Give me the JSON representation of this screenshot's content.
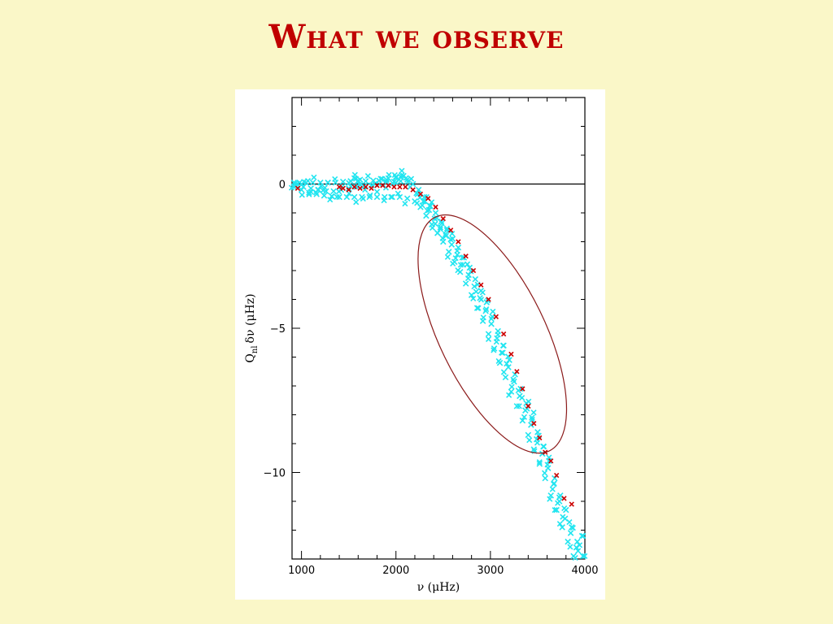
{
  "slide": {
    "title": "What we observe"
  },
  "chart_data": {
    "type": "scatter",
    "title": "",
    "xlabel": "ν (μHz)",
    "ylabel": "Q_nl δν (μHz)",
    "ylabel_main": "Q",
    "ylabel_sub": "nl",
    "ylabel_rest": "δν  (μHz)",
    "xlim": [
      900,
      4000
    ],
    "ylim": [
      -13,
      3
    ],
    "x_ticks": [
      1000,
      2000,
      3000,
      4000
    ],
    "y_ticks": [
      0,
      -5,
      -10
    ],
    "y_tick_labels": [
      "0",
      "−5",
      "−10"
    ],
    "grid": false,
    "reference_line_y": 0,
    "colors": {
      "model_points": "#22e5f0",
      "observed_points": "#cc0000",
      "ellipse": "#8b1a1a",
      "axes": "#000000"
    },
    "series": [
      {
        "marker": "cross",
        "color": "#22e5f0",
        "points": [
          [
            920,
            0.05
          ],
          [
            980,
            0.05
          ],
          [
            1050,
            0.05
          ],
          [
            1120,
            0.05
          ],
          [
            1200,
            0.05
          ],
          [
            1280,
            0.05
          ],
          [
            1360,
            0.05
          ],
          [
            1440,
            0.08
          ],
          [
            1520,
            0.1
          ],
          [
            1600,
            0.12
          ],
          [
            1680,
            0.1
          ],
          [
            1760,
            0.12
          ],
          [
            1840,
            0.18
          ],
          [
            1920,
            0.2
          ],
          [
            2000,
            0.22
          ],
          [
            2060,
            0.3
          ],
          [
            2120,
            0.15
          ],
          [
            2180,
            0.0
          ],
          [
            2240,
            -0.2
          ],
          [
            2300,
            -0.45
          ],
          [
            2360,
            -0.75
          ],
          [
            2420,
            -1.0
          ],
          [
            2480,
            -1.3
          ],
          [
            2540,
            -1.6
          ],
          [
            2600,
            -1.9
          ],
          [
            2660,
            -2.2
          ],
          [
            2720,
            -2.55
          ],
          [
            2780,
            -2.9
          ],
          [
            2840,
            -3.3
          ],
          [
            2900,
            -3.7
          ],
          [
            2960,
            -4.1
          ],
          [
            3020,
            -4.6
          ],
          [
            3080,
            -5.1
          ],
          [
            3140,
            -5.6
          ],
          [
            3200,
            -6.1
          ],
          [
            3260,
            -6.6
          ],
          [
            3320,
            -7.1
          ],
          [
            3380,
            -7.6
          ],
          [
            3440,
            -8.1
          ],
          [
            3500,
            -8.6
          ],
          [
            3560,
            -9.1
          ],
          [
            3620,
            -9.6
          ],
          [
            3680,
            -10.2
          ],
          [
            3740,
            -10.8
          ],
          [
            3800,
            -11.3
          ],
          [
            3860,
            -11.9
          ],
          [
            3920,
            -12.4
          ],
          [
            3980,
            -12.9
          ],
          [
            920,
            -0.1
          ],
          [
            1000,
            -0.2
          ],
          [
            1080,
            -0.3
          ],
          [
            1160,
            -0.35
          ],
          [
            1240,
            -0.4
          ],
          [
            1320,
            -0.42
          ],
          [
            1400,
            -0.45
          ],
          [
            1480,
            -0.45
          ],
          [
            1560,
            -0.45
          ],
          [
            1640,
            -0.45
          ],
          [
            1720,
            -0.45
          ],
          [
            1800,
            -0.45
          ],
          [
            1880,
            -0.45
          ],
          [
            1960,
            -0.45
          ],
          [
            2040,
            -0.45
          ],
          [
            2120,
            -0.5
          ],
          [
            2200,
            -0.6
          ],
          [
            2260,
            -0.8
          ],
          [
            2320,
            -1.1
          ],
          [
            2380,
            -1.4
          ],
          [
            2440,
            -1.7
          ],
          [
            2500,
            -2.0
          ],
          [
            2560,
            -2.35
          ],
          [
            2620,
            -2.7
          ],
          [
            2680,
            -3.05
          ],
          [
            2740,
            -3.45
          ],
          [
            2800,
            -3.85
          ],
          [
            2860,
            -4.3
          ],
          [
            2920,
            -4.75
          ],
          [
            2980,
            -5.2
          ],
          [
            3040,
            -5.7
          ],
          [
            3100,
            -6.2
          ],
          [
            3160,
            -6.7
          ],
          [
            3220,
            -7.2
          ],
          [
            3280,
            -7.7
          ],
          [
            3340,
            -8.2
          ],
          [
            3400,
            -8.7
          ],
          [
            3460,
            -9.2
          ],
          [
            3520,
            -9.7
          ],
          [
            3580,
            -10.2
          ],
          [
            3640,
            -10.8
          ],
          [
            3700,
            -11.3
          ],
          [
            3760,
            -11.9
          ],
          [
            3820,
            -12.4
          ],
          [
            3880,
            -12.9
          ],
          [
            940,
            -0.05
          ],
          [
            1020,
            -0.1
          ],
          [
            1100,
            -0.15
          ],
          [
            1180,
            -0.2
          ],
          [
            1260,
            -0.25
          ],
          [
            1340,
            -0.25
          ],
          [
            1420,
            -0.2
          ],
          [
            1500,
            -0.15
          ],
          [
            1580,
            -0.1
          ],
          [
            1660,
            -0.08
          ],
          [
            1740,
            -0.05
          ],
          [
            1820,
            0.0
          ],
          [
            1900,
            0.05
          ],
          [
            1980,
            0.08
          ],
          [
            2050,
            0.1
          ],
          [
            2150,
            -0.1
          ],
          [
            2230,
            -0.35
          ],
          [
            2290,
            -0.6
          ],
          [
            2350,
            -0.9
          ],
          [
            2410,
            -1.2
          ],
          [
            2470,
            -1.5
          ],
          [
            2530,
            -1.8
          ],
          [
            2590,
            -2.1
          ],
          [
            2650,
            -2.45
          ],
          [
            2710,
            -2.8
          ],
          [
            2770,
            -3.15
          ],
          [
            2830,
            -3.55
          ],
          [
            2890,
            -3.95
          ],
          [
            2950,
            -4.4
          ],
          [
            3010,
            -4.85
          ],
          [
            3070,
            -5.35
          ],
          [
            3130,
            -5.85
          ],
          [
            3190,
            -6.35
          ],
          [
            3250,
            -6.85
          ],
          [
            3310,
            -7.35
          ],
          [
            3370,
            -7.85
          ],
          [
            3430,
            -8.35
          ],
          [
            3490,
            -8.85
          ],
          [
            3550,
            -9.35
          ],
          [
            3610,
            -9.85
          ],
          [
            3670,
            -10.4
          ],
          [
            3730,
            -11.0
          ],
          [
            3790,
            -11.6
          ],
          [
            3850,
            -12.1
          ],
          [
            3910,
            -12.6
          ],
          [
            3970,
            -12.2
          ],
          [
            1560,
            0.2
          ],
          [
            1620,
            0.15
          ],
          [
            1900,
            0.15
          ],
          [
            2000,
            0.25
          ],
          [
            2080,
            0.28
          ]
        ]
      },
      {
        "marker": "cross",
        "color": "#cc0000",
        "points": [
          [
            960,
            -0.15
          ],
          [
            1400,
            -0.1
          ],
          [
            1440,
            -0.15
          ],
          [
            1500,
            -0.2
          ],
          [
            1560,
            -0.1
          ],
          [
            1620,
            -0.15
          ],
          [
            1680,
            -0.1
          ],
          [
            1740,
            -0.15
          ],
          [
            1800,
            -0.05
          ],
          [
            1860,
            -0.05
          ],
          [
            1920,
            -0.05
          ],
          [
            1980,
            -0.1
          ],
          [
            2040,
            -0.1
          ],
          [
            2100,
            -0.1
          ],
          [
            2180,
            -0.2
          ],
          [
            2260,
            -0.35
          ],
          [
            2340,
            -0.5
          ],
          [
            2420,
            -0.8
          ],
          [
            2500,
            -1.2
          ],
          [
            2580,
            -1.6
          ],
          [
            2660,
            -2.0
          ],
          [
            2740,
            -2.5
          ],
          [
            2820,
            -3.0
          ],
          [
            2900,
            -3.5
          ],
          [
            2980,
            -4.0
          ],
          [
            3060,
            -4.6
          ],
          [
            3140,
            -5.2
          ],
          [
            3220,
            -5.9
          ],
          [
            3280,
            -6.5
          ],
          [
            3340,
            -7.1
          ],
          [
            3400,
            -7.7
          ],
          [
            3460,
            -8.3
          ],
          [
            3520,
            -8.8
          ],
          [
            3580,
            -9.3
          ],
          [
            3640,
            -9.6
          ],
          [
            3700,
            -10.1
          ],
          [
            3780,
            -10.9
          ],
          [
            3860,
            -11.1
          ]
        ]
      }
    ],
    "annotation": {
      "shape": "ellipse",
      "center": [
        3020,
        -5.2
      ],
      "description": "ellipse around the steep decline region"
    }
  }
}
